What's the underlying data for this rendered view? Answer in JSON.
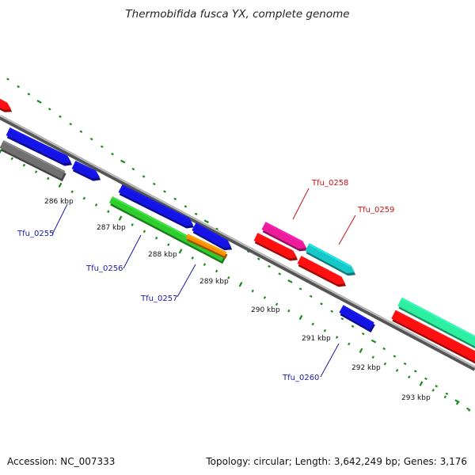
{
  "title": "Thermobifida fusca YX, complete genome",
  "footer": {
    "accession": "Accession: NC_007333",
    "summary": "Topology: circular; Length: 3,642,249 bp; Genes: 3,176"
  },
  "colors": {
    "scale_dots": "#1a8a1a",
    "backbone": "#777777",
    "label_blue": "#1a1aa8",
    "label_red": "#cc1111"
  },
  "scale_labels": [
    "286 kbp",
    "287 kbp",
    "288 kbp",
    "289 kbp",
    "290 kbp",
    "291 kbp",
    "292 kbp",
    "293 kbp"
  ],
  "gene_labels": [
    {
      "text": "Tfu_0255",
      "color": "blue"
    },
    {
      "text": "Tfu_0256",
      "color": "blue"
    },
    {
      "text": "Tfu_0257",
      "color": "blue"
    },
    {
      "text": "Tfu_0258",
      "color": "red"
    },
    {
      "text": "Tfu_0259",
      "color": "red"
    },
    {
      "text": "Tfu_0260",
      "color": "blue"
    }
  ],
  "features": [
    {
      "color": "#ff1010"
    },
    {
      "color": "#1414e6"
    },
    {
      "color": "#707070"
    },
    {
      "color": "#1414e6"
    },
    {
      "color": "#1414e6"
    },
    {
      "color": "#2ecc2e"
    },
    {
      "color": "#1414e6"
    },
    {
      "color": "#ff8c00"
    },
    {
      "color": "#ee1c9a"
    },
    {
      "color": "#ff1010"
    },
    {
      "color": "#18c8c8"
    },
    {
      "color": "#ff1010"
    },
    {
      "color": "#1414e6"
    },
    {
      "color": "#2cf0a0"
    },
    {
      "color": "#ff1010"
    }
  ]
}
